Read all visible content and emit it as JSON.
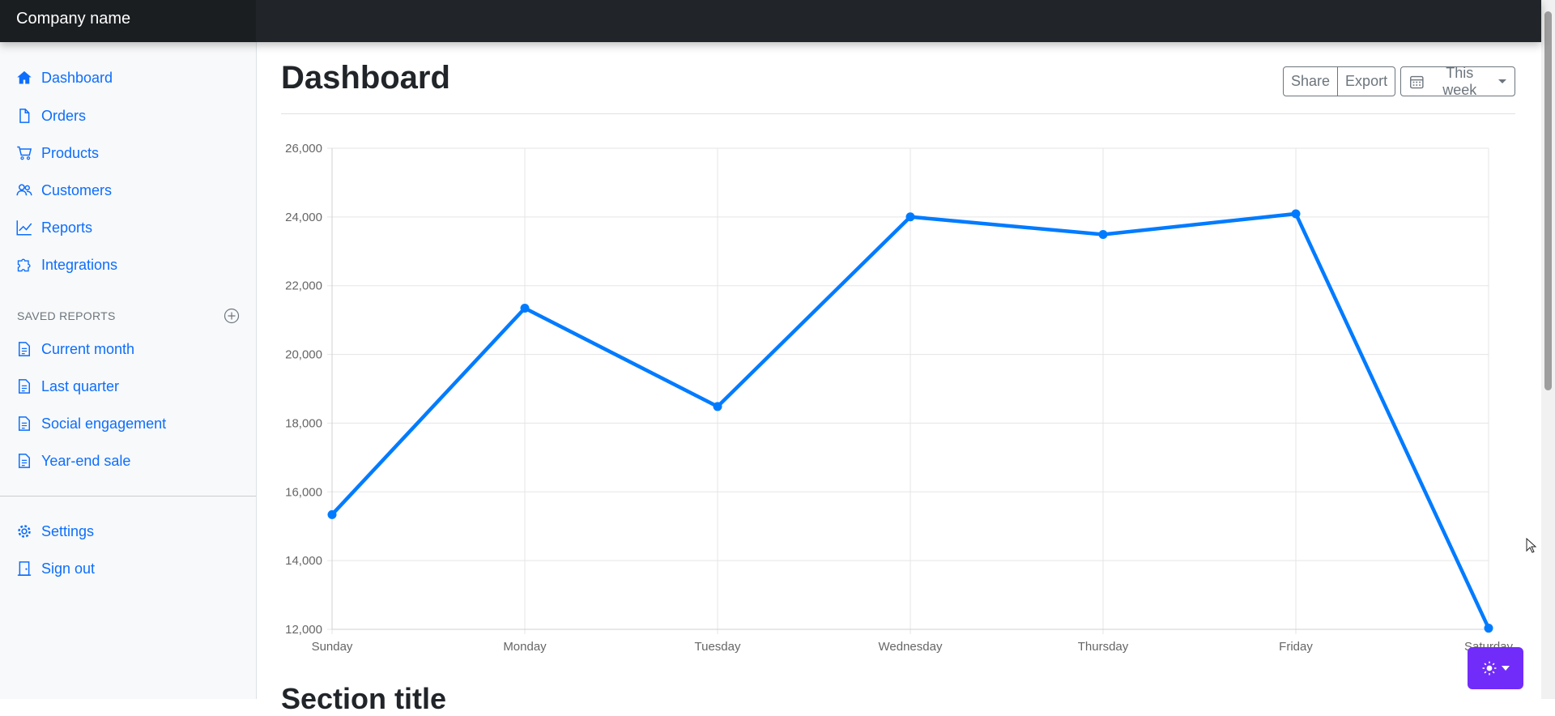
{
  "header": {
    "brand": "Company name"
  },
  "sidebar": {
    "items": [
      {
        "label": "Dashboard",
        "icon": "house-icon"
      },
      {
        "label": "Orders",
        "icon": "file-icon"
      },
      {
        "label": "Products",
        "icon": "cart-icon"
      },
      {
        "label": "Customers",
        "icon": "people-icon"
      },
      {
        "label": "Reports",
        "icon": "graph-icon"
      },
      {
        "label": "Integrations",
        "icon": "puzzle-icon"
      }
    ],
    "saved_heading": "SAVED REPORTS",
    "saved": [
      {
        "label": "Current month",
        "icon": "file-text-icon"
      },
      {
        "label": "Last quarter",
        "icon": "file-text-icon"
      },
      {
        "label": "Social engagement",
        "icon": "file-text-icon"
      },
      {
        "label": "Year-end sale",
        "icon": "file-text-icon"
      }
    ],
    "footer": [
      {
        "label": "Settings",
        "icon": "gear-icon"
      },
      {
        "label": "Sign out",
        "icon": "door-icon"
      }
    ]
  },
  "main": {
    "title": "Dashboard",
    "share_label": "Share",
    "export_label": "Export",
    "period_label": "This week",
    "section_title": "Section title"
  },
  "colors": {
    "accent": "#0d6efd",
    "line": "#007bff",
    "topbar": "#212529",
    "theme_button": "#712cf9"
  },
  "chart_data": {
    "type": "line",
    "categories": [
      "Sunday",
      "Monday",
      "Tuesday",
      "Wednesday",
      "Thursday",
      "Friday",
      "Saturday"
    ],
    "series": [
      {
        "values": [
          15339,
          21345,
          18483,
          24003,
          23489,
          24092,
          12034
        ]
      }
    ],
    "ylim": [
      12000,
      26000
    ],
    "yticks": [
      12000,
      14000,
      16000,
      18000,
      20000,
      22000,
      24000,
      26000
    ],
    "ytick_labels": [
      "12,000",
      "14,000",
      "16,000",
      "18,000",
      "20,000",
      "22,000",
      "24,000",
      "26,000"
    ],
    "grid": true,
    "legend": false
  }
}
